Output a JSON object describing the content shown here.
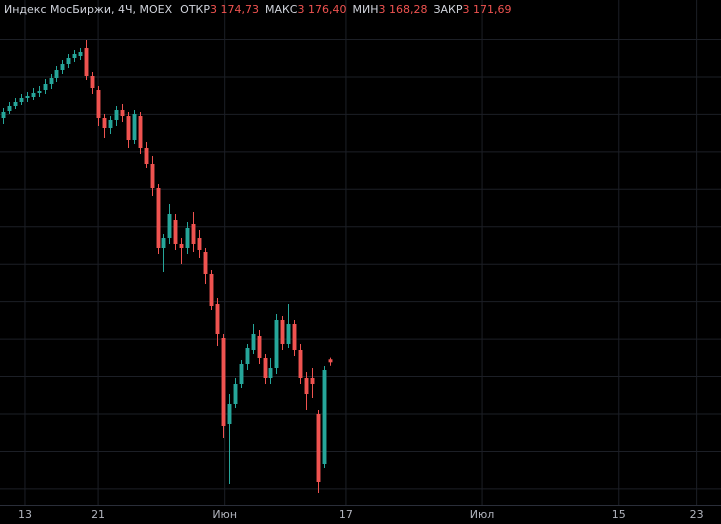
{
  "header": {
    "symbol": "Индекс МосБиржи, 4Ч, MOEX",
    "fields": [
      {
        "label": "ОТКР",
        "value": "3 174,73"
      },
      {
        "label": "МАКС",
        "value": "3 176,40"
      },
      {
        "label": "МИН",
        "value": "3 168,28"
      },
      {
        "label": "ЗАКР",
        "value": "3 171,69"
      }
    ]
  },
  "chart_data": {
    "type": "candlestick",
    "up_color": "#26a69a",
    "down_color": "#ef5350",
    "grid": true,
    "xlim": [
      -0.5,
      120.8
    ],
    "ylim": [
      3029,
      3534
    ],
    "xticks": [
      {
        "value": 3.7,
        "label": "13"
      },
      {
        "value": 16.0,
        "label": "21"
      },
      {
        "value": 37.3,
        "label": "Июн"
      },
      {
        "value": 57.7,
        "label": "17"
      },
      {
        "value": 80.6,
        "label": "Июл"
      },
      {
        "value": 103.6,
        "label": "15"
      },
      {
        "value": 116.7,
        "label": "23"
      }
    ],
    "open": [
      3416,
      3423,
      3428,
      3432,
      3436,
      3437,
      3441,
      3444,
      3450,
      3456,
      3464,
      3470,
      3476,
      3478,
      3486,
      3458,
      3444,
      3416,
      3406,
      3414,
      3424,
      3418,
      3394,
      3418,
      3386,
      3370,
      3346,
      3286,
      3296,
      3314,
      3290,
      3286,
      3310,
      3296,
      3282,
      3260,
      3230,
      3196,
      3110,
      3130,
      3150,
      3170,
      3184,
      3198,
      3176,
      3156,
      3166,
      3214,
      3190,
      3210,
      3184,
      3156,
      3156,
      3120,
      3070,
      3174.73
    ],
    "high": [
      3426,
      3432,
      3436,
      3440,
      3442,
      3446,
      3448,
      3455,
      3460,
      3468,
      3474,
      3480,
      3484,
      3486,
      3494,
      3462,
      3448,
      3420,
      3418,
      3428,
      3430,
      3422,
      3424,
      3422,
      3392,
      3378,
      3350,
      3300,
      3330,
      3320,
      3296,
      3312,
      3322,
      3304,
      3286,
      3264,
      3236,
      3200,
      3140,
      3156,
      3174,
      3190,
      3210,
      3204,
      3180,
      3176,
      3220,
      3218,
      3230,
      3214,
      3190,
      3162,
      3166,
      3124,
      3168,
      3176.4
    ],
    "low": [
      3410,
      3420,
      3425,
      3429,
      3432,
      3434,
      3437,
      3440,
      3445,
      3452,
      3460,
      3466,
      3472,
      3474,
      3454,
      3440,
      3408,
      3396,
      3400,
      3408,
      3412,
      3386,
      3390,
      3380,
      3366,
      3338,
      3280,
      3262,
      3290,
      3284,
      3270,
      3280,
      3282,
      3276,
      3250,
      3224,
      3188,
      3096,
      3050,
      3126,
      3146,
      3164,
      3180,
      3170,
      3150,
      3150,
      3160,
      3184,
      3186,
      3178,
      3150,
      3124,
      3136,
      3041,
      3066,
      3168.28
    ],
    "close": [
      3422,
      3428,
      3432,
      3436,
      3438,
      3441,
      3443,
      3450,
      3456,
      3464,
      3470,
      3476,
      3480,
      3482,
      3458,
      3446,
      3416,
      3406,
      3414,
      3424,
      3418,
      3394,
      3420,
      3386,
      3370,
      3346,
      3286,
      3296,
      3320,
      3290,
      3286,
      3306,
      3290,
      3284,
      3260,
      3228,
      3200,
      3108,
      3130,
      3150,
      3170,
      3186,
      3200,
      3176,
      3156,
      3166,
      3214,
      3190,
      3210,
      3184,
      3156,
      3140,
      3150,
      3052,
      3164,
      3171.69
    ]
  }
}
